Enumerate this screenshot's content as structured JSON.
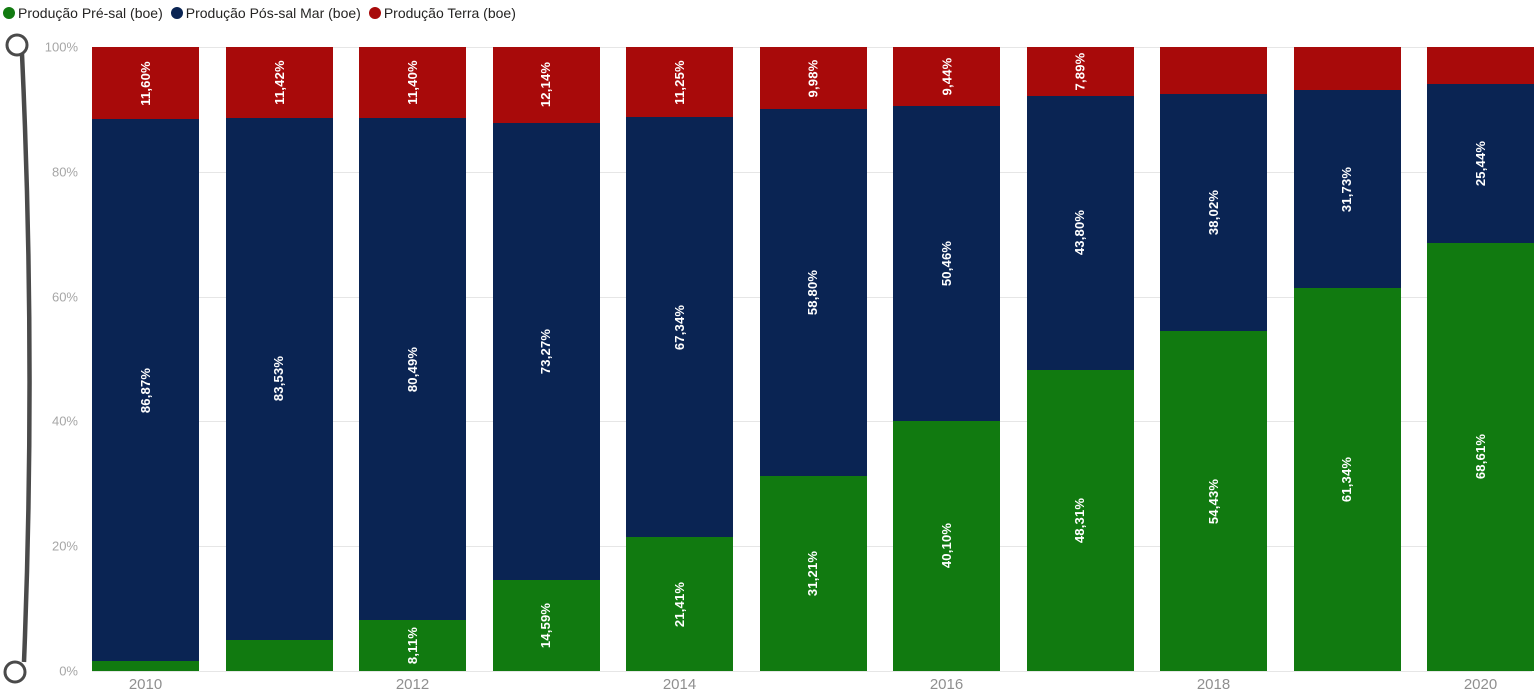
{
  "colors": {
    "pre_sal": "#117A10",
    "pos_sal": "#0A2453",
    "terra": "#A80A0A",
    "gridline": "#E6E6E6",
    "slider": "#4A4A4A"
  },
  "legend": [
    {
      "label": "Produção Pré-sal (boe)",
      "color": "#117A10"
    },
    {
      "label": "Produção Pós-sal Mar (boe)",
      "color": "#0A2453"
    },
    {
      "label": "Produção Terra (boe)",
      "color": "#A80A0A"
    }
  ],
  "chart_data": {
    "type": "bar",
    "subtype": "100%-stacked-column",
    "categories": [
      "2010",
      "2011",
      "2012",
      "2013",
      "2014",
      "2015",
      "2016",
      "2017",
      "2018",
      "2019",
      "2020"
    ],
    "series": [
      {
        "name": "Produção Pré-sal (boe)",
        "color": "#117A10",
        "values": [
          1.53,
          5.05,
          8.11,
          14.59,
          21.41,
          31.21,
          40.1,
          48.31,
          54.43,
          61.34,
          68.61
        ],
        "labels": [
          null,
          null,
          "8,11%",
          "14,59%",
          "21,41%",
          "31,21%",
          "40,10%",
          "48,31%",
          "54,43%",
          "61,34%",
          "68,61%"
        ]
      },
      {
        "name": "Produção Pós-sal Mar (boe)",
        "color": "#0A2453",
        "values": [
          86.87,
          83.53,
          80.49,
          73.27,
          67.34,
          58.8,
          50.46,
          43.8,
          38.02,
          31.73,
          25.44
        ],
        "labels": [
          "86,87%",
          "83,53%",
          "80,49%",
          "73,27%",
          "67,34%",
          "58,80%",
          "50,46%",
          "43,80%",
          "38,02%",
          "31,73%",
          "25,44%"
        ]
      },
      {
        "name": "Produção Terra (boe)",
        "color": "#A80A0A",
        "values": [
          11.6,
          11.42,
          11.4,
          12.14,
          11.25,
          9.98,
          9.44,
          7.89,
          7.55,
          6.93,
          5.95
        ],
        "labels": [
          "11,60%",
          "11,42%",
          "11,40%",
          "12,14%",
          "11,25%",
          "9,98%",
          "9,44%",
          "7,89%",
          null,
          null,
          null
        ]
      }
    ],
    "y_ticks": [
      "100%",
      "80%",
      "60%",
      "40%",
      "20%",
      "0%"
    ],
    "x_tick_labels": [
      "2010",
      "2012",
      "2014",
      "2016",
      "2018",
      "2020"
    ],
    "x_tick_every": 2,
    "ylim": [
      0,
      100
    ],
    "grid": true,
    "legend_position": "top-left",
    "stack_order_bottom_to_top": [
      "Produção Pré-sal (boe)",
      "Produção Pós-sal Mar (boe)",
      "Produção Terra (boe)"
    ]
  }
}
